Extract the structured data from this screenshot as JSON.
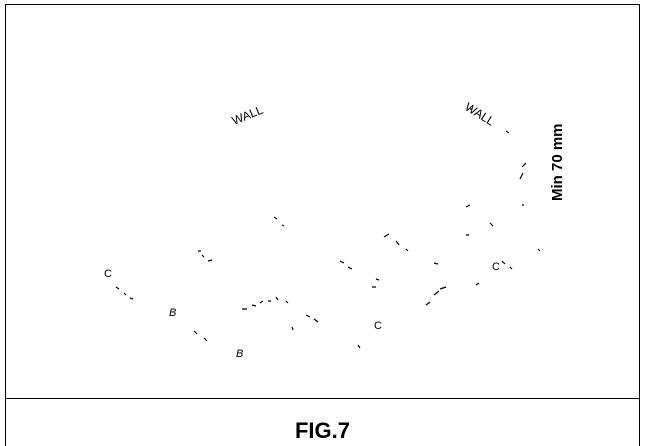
{
  "figure": {
    "caption": "FIG.7",
    "labels": {
      "wall_left": "WALL",
      "wall_right": "WALL",
      "dimension": "Min 70 mm",
      "mark_c_left": "C",
      "mark_b_1": "B",
      "mark_b_2": "B",
      "mark_c_mid": "C",
      "mark_c_right": "C"
    }
  }
}
